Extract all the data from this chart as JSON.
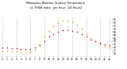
{
  "title": "Milwaukee Weather Outdoor Temperature vs THSW Index per Hour (24 Hours)",
  "hours": [
    0,
    1,
    2,
    3,
    4,
    5,
    6,
    7,
    8,
    9,
    10,
    11,
    12,
    13,
    14,
    15,
    16,
    17,
    18,
    19,
    20,
    21,
    22,
    23
  ],
  "temp": [
    40,
    39,
    38,
    38,
    37,
    37,
    37,
    39,
    44,
    50,
    57,
    62,
    66,
    68,
    68,
    67,
    65,
    61,
    57,
    53,
    50,
    47,
    45,
    43
  ],
  "thsw": [
    35,
    34,
    33,
    33,
    32,
    31,
    32,
    36,
    46,
    57,
    67,
    75,
    80,
    83,
    83,
    81,
    77,
    70,
    62,
    55,
    50,
    45,
    42,
    40
  ],
  "temp_color": "#cc0000",
  "thsw_color": "#ff8800",
  "bg_color": "#ffffff",
  "grid_color": "#bbbbbb",
  "ylim": [
    25,
    90
  ],
  "yticks_right": [
    30,
    35,
    40,
    45,
    50,
    55,
    60,
    65,
    70,
    75,
    80,
    85
  ],
  "xtick_hours": [
    0,
    1,
    2,
    3,
    4,
    5,
    6,
    7,
    8,
    9,
    10,
    11,
    12,
    13,
    14,
    15,
    16,
    17,
    18,
    19,
    20,
    21,
    22,
    23
  ],
  "grid_hours": [
    0,
    3,
    6,
    9,
    12,
    15,
    18,
    21,
    23
  ]
}
